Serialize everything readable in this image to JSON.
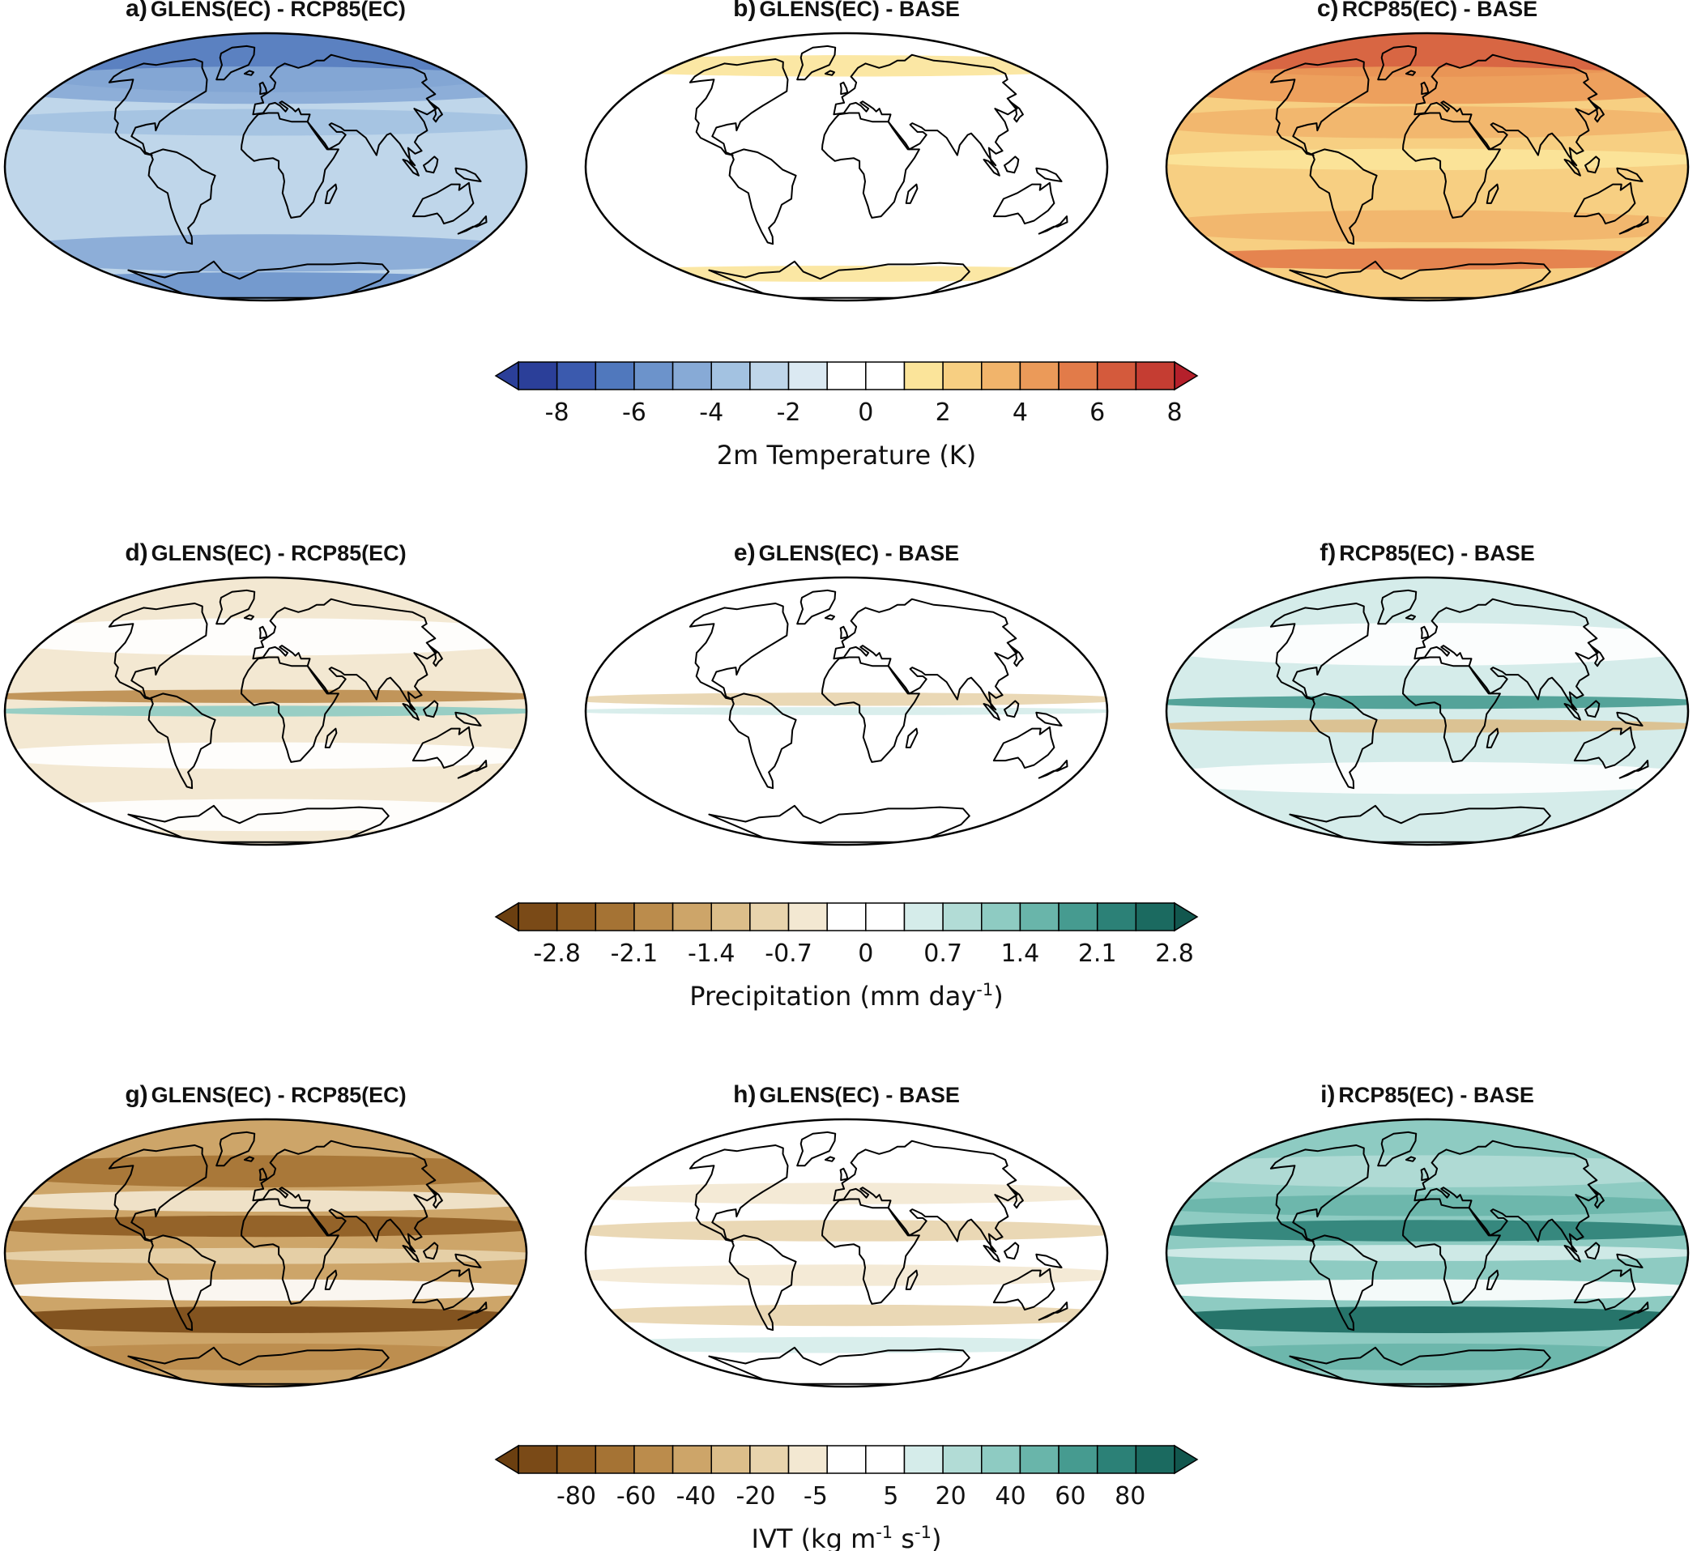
{
  "panels": [
    {
      "id": "a",
      "letter": "a)",
      "title": "GLENS(EC) - RCP85(EC)",
      "row": 0,
      "col": 0,
      "variable": "temperature",
      "pattern": "cool_strong"
    },
    {
      "id": "b",
      "letter": "b)",
      "title": "GLENS(EC) - BASE",
      "row": 0,
      "col": 1,
      "variable": "temperature",
      "pattern": "near_zero_warm"
    },
    {
      "id": "c",
      "letter": "c)",
      "title": "RCP85(EC) - BASE",
      "row": 0,
      "col": 2,
      "variable": "temperature",
      "pattern": "warm_strong"
    },
    {
      "id": "d",
      "letter": "d)",
      "title": "GLENS(EC) - RCP85(EC)",
      "row": 1,
      "col": 0,
      "variable": "precipitation",
      "pattern": "dry_itcz"
    },
    {
      "id": "e",
      "letter": "e)",
      "title": "GLENS(EC) - BASE",
      "row": 1,
      "col": 1,
      "variable": "precipitation",
      "pattern": "near_zero"
    },
    {
      "id": "f",
      "letter": "f)",
      "title": "RCP85(EC) - BASE",
      "row": 1,
      "col": 2,
      "variable": "precipitation",
      "pattern": "wet_itcz"
    },
    {
      "id": "g",
      "letter": "g)",
      "title": "GLENS(EC) - RCP85(EC)",
      "row": 2,
      "col": 0,
      "variable": "ivt",
      "pattern": "ivt_dry_strong"
    },
    {
      "id": "h",
      "letter": "h)",
      "title": "GLENS(EC) - BASE",
      "row": 2,
      "col": 1,
      "variable": "ivt",
      "pattern": "ivt_weak"
    },
    {
      "id": "i",
      "letter": "i)",
      "title": "RCP85(EC) - BASE",
      "row": 2,
      "col": 2,
      "variable": "ivt",
      "pattern": "ivt_wet_strong"
    }
  ],
  "colorbars": [
    {
      "id": "temperature",
      "label_main": "2m Temperature (K)",
      "label_sup": "",
      "label_tail": "",
      "ticks": [
        "-8",
        "-6",
        "-4",
        "-2",
        "0",
        "2",
        "4",
        "6",
        "8"
      ],
      "colors": [
        "#2b3f99",
        "#3b5aae",
        "#5078bd",
        "#6c93cb",
        "#87aad6",
        "#a3c2e1",
        "#bfd6ea",
        "#dbe9f2",
        "#ffffff",
        "#ffffff",
        "#fbe49a",
        "#f7cf82",
        "#f1b46b",
        "#eb9a59",
        "#e27b49",
        "#d45a3c",
        "#c53d32"
      ],
      "end_left": "#2b3f99",
      "end_right": "#b5202b"
    },
    {
      "id": "precipitation",
      "label_main": "Precipitation (mm day",
      "label_sup": "-1",
      "label_tail": ")",
      "ticks": [
        "-2.8",
        "-2.1",
        "-1.4",
        "-0.7",
        "0",
        "0.7",
        "1.4",
        "2.1",
        "2.8"
      ],
      "colors": [
        "#7a4a17",
        "#8e5c22",
        "#a57334",
        "#bb8c4c",
        "#cda569",
        "#dcbe8a",
        "#e8d4ad",
        "#f3e8d2",
        "#ffffff",
        "#ffffff",
        "#d5ecea",
        "#b2dcd6",
        "#8ecbc2",
        "#69b5aa",
        "#469b90",
        "#2c8177",
        "#1b6a60"
      ],
      "end_left": "#6b3f10",
      "end_right": "#12574e"
    },
    {
      "id": "ivt",
      "label_main": "IVT (kg m",
      "label_sup": "-1",
      "label_mid": " s",
      "label_sup2": "-1",
      "label_tail": ")",
      "ticks": [
        "-80",
        "-60",
        "-40",
        "-20",
        "-5",
        "5",
        "20",
        "40",
        "60",
        "80"
      ],
      "colors": [
        "#7a4a17",
        "#8e5c22",
        "#a57334",
        "#bb8c4c",
        "#cda569",
        "#dcbe8a",
        "#e8d4ad",
        "#f3e8d2",
        "#ffffff",
        "#ffffff",
        "#d5ecea",
        "#b2dcd6",
        "#8ecbc2",
        "#69b5aa",
        "#469b90",
        "#2c8177",
        "#1b6a60"
      ],
      "end_left": "#6b3f10",
      "end_right": "#12574e"
    }
  ]
}
